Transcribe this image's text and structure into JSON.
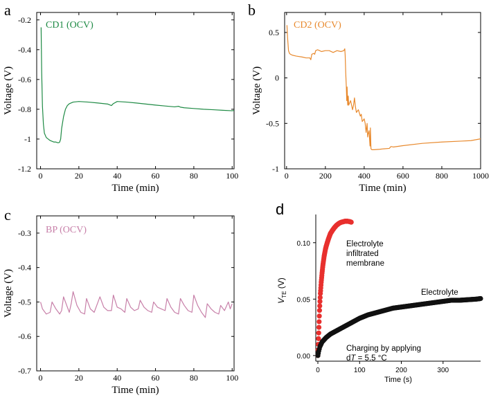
{
  "chart_data": [
    {
      "panel_letter": "a",
      "type": "line",
      "series_label": "CD1 (OCV)",
      "color": "#1e8a44",
      "xlabel": "Time (min)",
      "ylabel": "Voltage (V)",
      "xlim": [
        -2,
        101
      ],
      "ylim": [
        -1.2,
        -0.15
      ],
      "xticks": [
        0,
        20,
        40,
        60,
        80,
        100
      ],
      "yticks": [
        -0.2,
        -0.4,
        -0.6,
        -0.8,
        -1,
        -1.2
      ],
      "ytick_labels": [
        "-0.2",
        "-0.4",
        "-0.6",
        "-0.8",
        "-1",
        "-1.2"
      ],
      "x": [
        0.3,
        0.6,
        1,
        1.5,
        2,
        3,
        4,
        5,
        6,
        7,
        8,
        9,
        9.5,
        10,
        10.5,
        11,
        12,
        13,
        14,
        15,
        17,
        20,
        25,
        30,
        35,
        37,
        38,
        40,
        45,
        50,
        55,
        60,
        65,
        70,
        72,
        73,
        75,
        80,
        85,
        90,
        95,
        100,
        101
      ],
      "y": [
        -0.25,
        -0.55,
        -0.78,
        -0.9,
        -0.96,
        -0.99,
        -1.0,
        -1.01,
        -1.015,
        -1.02,
        -1.02,
        -1.025,
        -1.025,
        -1.02,
        -1.0,
        -0.93,
        -0.85,
        -0.8,
        -0.775,
        -0.763,
        -0.752,
        -0.748,
        -0.752,
        -0.758,
        -0.765,
        -0.775,
        -0.762,
        -0.748,
        -0.752,
        -0.758,
        -0.765,
        -0.772,
        -0.778,
        -0.784,
        -0.78,
        -0.786,
        -0.79,
        -0.795,
        -0.8,
        -0.803,
        -0.807,
        -0.81,
        -0.808
      ]
    },
    {
      "panel_letter": "b",
      "type": "line",
      "series_label": "CD2 (OCV)",
      "color": "#e8892d",
      "xlabel": "Time (min)",
      "ylabel": "Voltage (V)",
      "xlim": [
        -10,
        1000
      ],
      "ylim": [
        -1.0,
        0.72
      ],
      "xticks": [
        0,
        200,
        400,
        600,
        800,
        1000
      ],
      "yticks": [
        0.5,
        0,
        -0.5,
        -1
      ],
      "ytick_labels": [
        "0.5",
        "0",
        "-0.5",
        "-1"
      ],
      "x": [
        2,
        5,
        10,
        15,
        20,
        30,
        50,
        80,
        100,
        120,
        125,
        130,
        140,
        145,
        150,
        160,
        170,
        180,
        200,
        220,
        240,
        260,
        280,
        295,
        300,
        302,
        305,
        308,
        310,
        312,
        315,
        318,
        320,
        330,
        340,
        345,
        350,
        355,
        360,
        370,
        380,
        385,
        390,
        400,
        405,
        410,
        415,
        418,
        420,
        425,
        430,
        432,
        435,
        440,
        450,
        480,
        500,
        530,
        535,
        540,
        550,
        600,
        700,
        800,
        900,
        950,
        1000
      ],
      "y": [
        0.58,
        0.45,
        0.3,
        0.27,
        0.26,
        0.25,
        0.24,
        0.23,
        0.22,
        0.22,
        0.2,
        0.26,
        0.27,
        0.26,
        0.3,
        0.31,
        0.3,
        0.29,
        0.3,
        0.3,
        0.28,
        0.3,
        0.29,
        0.3,
        0.32,
        0.25,
        0.05,
        -0.1,
        -0.25,
        -0.1,
        -0.3,
        -0.2,
        -0.3,
        -0.25,
        -0.35,
        -0.3,
        -0.22,
        -0.32,
        -0.38,
        -0.35,
        -0.42,
        -0.4,
        -0.48,
        -0.45,
        -0.5,
        -0.6,
        -0.5,
        -0.65,
        -0.62,
        -0.58,
        -0.75,
        -0.55,
        -0.78,
        -0.79,
        -0.79,
        -0.785,
        -0.78,
        -0.775,
        -0.76,
        -0.755,
        -0.76,
        -0.745,
        -0.72,
        -0.705,
        -0.695,
        -0.69,
        -0.67
      ]
    },
    {
      "panel_letter": "c",
      "type": "line",
      "series_label": "BP (OCV)",
      "color": "#c77fa8",
      "xlabel": "Time (min)",
      "ylabel": "Voltage (V)",
      "xlim": [
        -2,
        101
      ],
      "ylim": [
        -0.7,
        -0.25
      ],
      "xticks": [
        0,
        20,
        40,
        60,
        80,
        100
      ],
      "yticks": [
        -0.3,
        -0.4,
        -0.5,
        -0.6,
        -0.7
      ],
      "ytick_labels": [
        "-0.3",
        "-0.4",
        "-0.5",
        "-0.6",
        "-0.7"
      ],
      "x": [
        0,
        1,
        3,
        5,
        6,
        8,
        10,
        11,
        12,
        14,
        15,
        16,
        17,
        19,
        21,
        23,
        24,
        26,
        28,
        30,
        31,
        33,
        35,
        37,
        38,
        40,
        42,
        44,
        45,
        47,
        49,
        51,
        52,
        54,
        56,
        58,
        59,
        61,
        63,
        65,
        66,
        68,
        70,
        72,
        73,
        75,
        77,
        79,
        80,
        82,
        84,
        86,
        87,
        89,
        91,
        93,
        94,
        96,
        98,
        99,
        100
      ],
      "y": [
        -0.5,
        -0.52,
        -0.535,
        -0.53,
        -0.5,
        -0.52,
        -0.535,
        -0.525,
        -0.485,
        -0.515,
        -0.53,
        -0.505,
        -0.47,
        -0.51,
        -0.53,
        -0.535,
        -0.49,
        -0.52,
        -0.53,
        -0.5,
        -0.485,
        -0.515,
        -0.525,
        -0.525,
        -0.48,
        -0.515,
        -0.52,
        -0.53,
        -0.49,
        -0.515,
        -0.525,
        -0.52,
        -0.495,
        -0.515,
        -0.525,
        -0.53,
        -0.5,
        -0.515,
        -0.52,
        -0.525,
        -0.49,
        -0.515,
        -0.53,
        -0.535,
        -0.49,
        -0.51,
        -0.525,
        -0.53,
        -0.48,
        -0.51,
        -0.53,
        -0.545,
        -0.505,
        -0.52,
        -0.53,
        -0.535,
        -0.51,
        -0.525,
        -0.5,
        -0.52,
        -0.505
      ]
    },
    {
      "panel_letter": "d",
      "type": "scatter",
      "xlabel": "Time (s)",
      "ylabel_main": "V",
      "ylabel_sub": "TE",
      "ylabel_unit": " (V)",
      "xlim": [
        -5,
        390
      ],
      "ylim": [
        -0.005,
        0.125
      ],
      "xticks": [
        0,
        100,
        200,
        300
      ],
      "yticks": [
        0.0,
        0.05,
        0.1
      ],
      "ytick_labels": [
        "0.00",
        "0.05",
        "0.10"
      ],
      "annotation_membrane": [
        "Electrolyte",
        "infiltrated",
        "membrane"
      ],
      "annotation_electrolyte": "Electrolyte",
      "annotation_charging": [
        "Charging by applying",
        "dT = 5.5 °C"
      ],
      "series": [
        {
          "name": "Electrolyte infiltrated membrane",
          "color": "#e8302e",
          "x": [
            0,
            1,
            2,
            3,
            4,
            5,
            6,
            8,
            10,
            12,
            15,
            18,
            20,
            25,
            30,
            35,
            40,
            45,
            50,
            55,
            60,
            65,
            70,
            75,
            80
          ],
          "y": [
            0.0,
            0.01,
            0.02,
            0.03,
            0.04,
            0.048,
            0.055,
            0.065,
            0.073,
            0.08,
            0.088,
            0.094,
            0.097,
            0.103,
            0.108,
            0.111,
            0.1135,
            0.1155,
            0.117,
            0.118,
            0.1185,
            0.119,
            0.119,
            0.1188,
            0.1182
          ]
        },
        {
          "name": "Electrolyte",
          "color": "#111111",
          "x": [
            0,
            2,
            5,
            10,
            20,
            30,
            40,
            50,
            60,
            70,
            80,
            90,
            100,
            120,
            140,
            160,
            180,
            200,
            220,
            240,
            260,
            280,
            300,
            320,
            340,
            360,
            380,
            390
          ],
          "y": [
            0.0,
            0.004,
            0.008,
            0.012,
            0.016,
            0.019,
            0.021,
            0.023,
            0.025,
            0.027,
            0.029,
            0.031,
            0.033,
            0.036,
            0.038,
            0.04,
            0.042,
            0.043,
            0.044,
            0.045,
            0.046,
            0.047,
            0.048,
            0.049,
            0.049,
            0.0495,
            0.05,
            0.0505
          ]
        }
      ]
    }
  ]
}
